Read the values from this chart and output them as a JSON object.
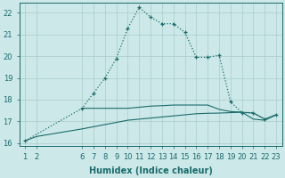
{
  "background_color": "#cce8e8",
  "grid_color": "#aacccc",
  "line_color": "#1a6b6b",
  "xlabel": "Humidex (Indice chaleur)",
  "xlabel_fontsize": 7,
  "ylim": [
    15.85,
    22.45
  ],
  "xlim": [
    0.5,
    23.5
  ],
  "yticks": [
    16,
    17,
    18,
    19,
    20,
    21,
    22
  ],
  "xticks": [
    1,
    2,
    6,
    7,
    8,
    9,
    10,
    11,
    12,
    13,
    14,
    15,
    16,
    17,
    18,
    19,
    20,
    21,
    22,
    23
  ],
  "tick_fontsize": 6,
  "line_diagonal_x": [
    1,
    2,
    6,
    7,
    8,
    9,
    10,
    11,
    12,
    13,
    14,
    15,
    16,
    17,
    18,
    19,
    20,
    21,
    22,
    23
  ],
  "line_diagonal_y": [
    16.1,
    16.3,
    16.65,
    16.75,
    16.85,
    16.95,
    17.05,
    17.1,
    17.15,
    17.2,
    17.25,
    17.3,
    17.35,
    17.37,
    17.38,
    17.4,
    17.42,
    17.1,
    17.05,
    17.3
  ],
  "line_flat_x": [
    6,
    7,
    8,
    9,
    10,
    11,
    12,
    13,
    14,
    15,
    16,
    17,
    18,
    19,
    20,
    21,
    22,
    23
  ],
  "line_flat_y": [
    17.6,
    17.6,
    17.6,
    17.6,
    17.6,
    17.65,
    17.7,
    17.72,
    17.75,
    17.75,
    17.75,
    17.75,
    17.55,
    17.45,
    17.42,
    17.38,
    17.1,
    17.3
  ],
  "line_peak_x": [
    1,
    6,
    7,
    8,
    9,
    10,
    11,
    12,
    13,
    14,
    15,
    16,
    17,
    18,
    19,
    20,
    21,
    22,
    23
  ],
  "line_peak_y": [
    16.1,
    17.6,
    18.3,
    19.0,
    19.9,
    21.3,
    22.25,
    21.8,
    21.5,
    21.5,
    21.1,
    19.95,
    19.95,
    20.05,
    17.9,
    17.4,
    17.4,
    17.1,
    17.3
  ]
}
